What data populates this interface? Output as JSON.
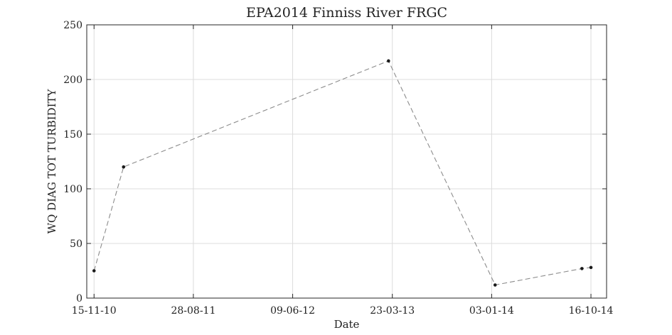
{
  "chart_data": {
    "type": "line",
    "title": "EPA2014 Finniss River FRGC",
    "xlabel": "Date",
    "ylabel": "WQ DIAG TOT TURBIDITY",
    "x_type": "date",
    "xlim": [
      "2010-10-25",
      "2014-11-30"
    ],
    "ylim": [
      0,
      250
    ],
    "yticks": [
      0,
      50,
      100,
      150,
      200,
      250
    ],
    "xticks": [
      {
        "date": "2010-11-15",
        "label": "15-11-10"
      },
      {
        "date": "2011-08-28",
        "label": "28-08-11"
      },
      {
        "date": "2012-06-09",
        "label": "09-06-12"
      },
      {
        "date": "2013-03-23",
        "label": "23-03-13"
      },
      {
        "date": "2014-01-03",
        "label": "03-01-14"
      },
      {
        "date": "2014-10-16",
        "label": "16-10-14"
      }
    ],
    "grid": true,
    "series": [
      {
        "line_style": "dashed",
        "color": "#8c8c8c",
        "marker_color": "#1a1a1a",
        "points": [
          {
            "x": "2010-11-15",
            "y": 25
          },
          {
            "x": "2011-02-08",
            "y": 120
          },
          {
            "x": "2013-03-12",
            "y": 217
          },
          {
            "x": "2014-01-13",
            "y": 12
          },
          {
            "x": "2014-09-20",
            "y": 27
          },
          {
            "x": "2014-10-16",
            "y": 28
          }
        ]
      }
    ]
  }
}
